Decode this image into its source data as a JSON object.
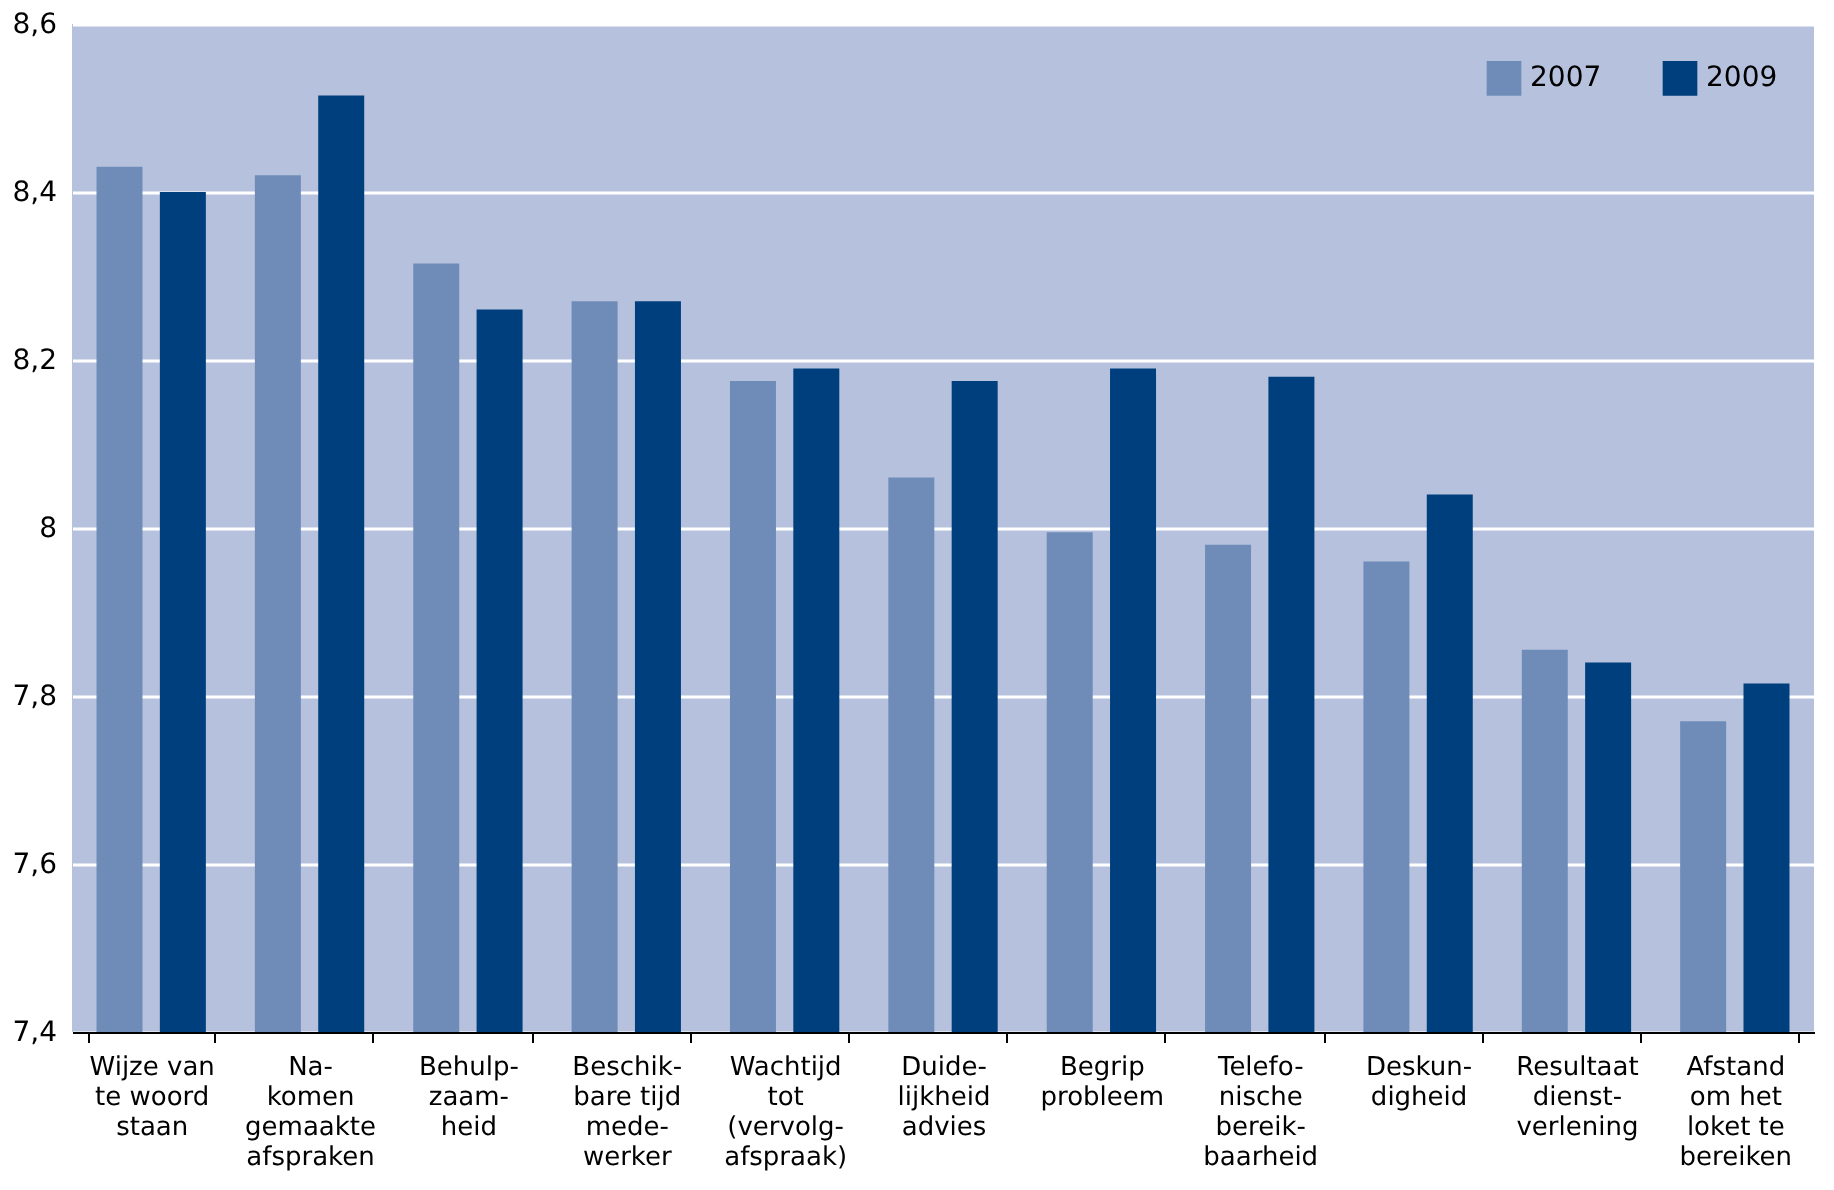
{
  "chart_data": {
    "type": "bar",
    "categories": [
      "Wijze van\nte woord\nstaan",
      "Na-\nkomen\ngemaakte\nafspraken",
      "Behulp-\nzaam-\nheid",
      "Beschik-\nbare tijd\nmede-\nwerker",
      "Wachtijd\ntot\n(vervolg-\nafspraak)",
      "Duide-\nlijkheid\nadvies",
      "Begrip\nprobleem",
      "Telefo-\nnische\nbereik-\nbaarheid",
      "Deskun-\ndigheid",
      "Resultaat\ndienst-\nverlening",
      "Afstand\nom het\nloket te\nbereiken"
    ],
    "series": [
      {
        "name": "2007",
        "color": "#6f8cb8",
        "values": [
          8.43,
          8.42,
          8.315,
          8.27,
          8.175,
          8.06,
          7.995,
          7.98,
          7.96,
          7.855,
          7.77
        ]
      },
      {
        "name": "2009",
        "color": "#003f7d",
        "values": [
          8.4,
          8.515,
          8.26,
          8.27,
          8.19,
          8.175,
          8.19,
          8.18,
          8.04,
          7.84,
          7.815
        ]
      }
    ],
    "ylim": [
      7.4,
      8.6
    ],
    "yticks": [
      {
        "value": 7.4,
        "label": "7,4"
      },
      {
        "value": 7.6,
        "label": "7,6"
      },
      {
        "value": 7.8,
        "label": "7,8"
      },
      {
        "value": 8,
        "label": "8"
      },
      {
        "value": 8.2,
        "label": "8,2"
      },
      {
        "value": 8.4,
        "label": "8,4"
      },
      {
        "value": 8.6,
        "label": "8,6"
      }
    ],
    "grid": "y",
    "legend": "top right"
  }
}
